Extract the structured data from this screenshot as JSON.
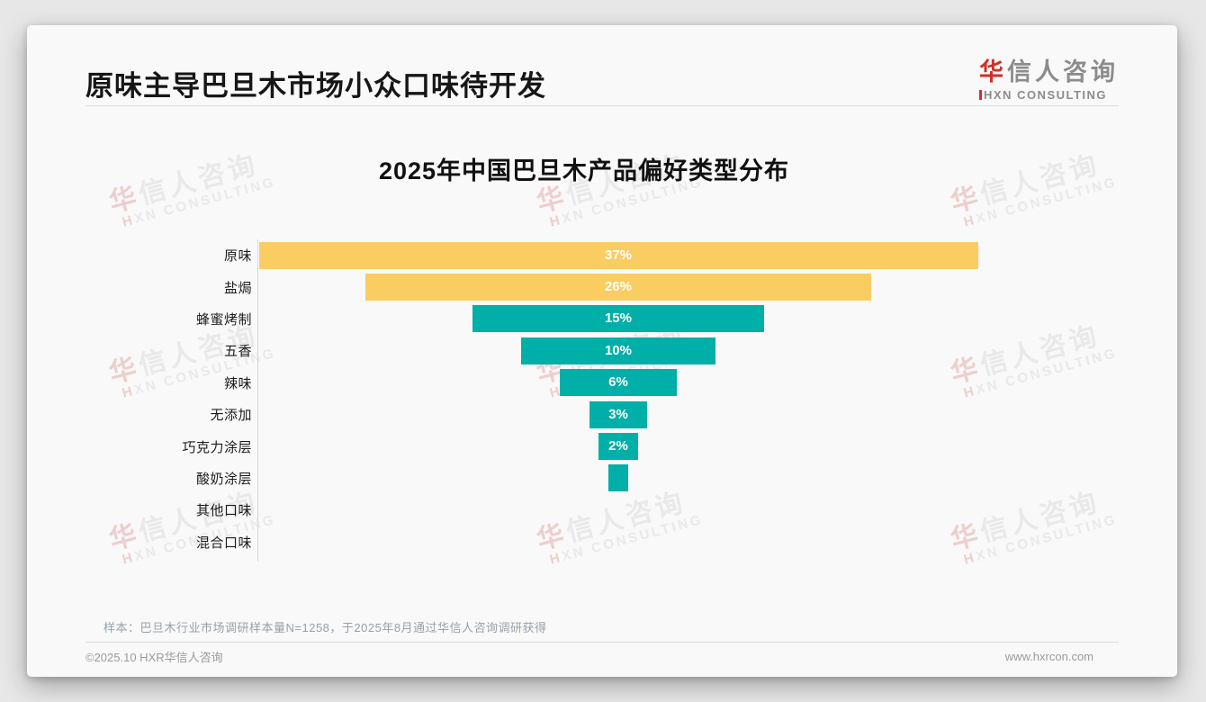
{
  "header": {
    "title": "原味主导巴旦木市场小众口味待开发"
  },
  "logo": {
    "zh_accent": "华",
    "zh_rest": "信人咨询",
    "en": "HXN CONSULTING",
    "accent_color": "#d22f27"
  },
  "watermark": {
    "line1_accent": "华",
    "line1_rest": "信人咨询",
    "line2_accent": "H",
    "line2_rest": "XN CONSULTING"
  },
  "chart_data": {
    "type": "bar",
    "subtype": "centered-funnel-horizontal",
    "title": "2025年中国巴旦木产品偏好类型分布",
    "categories": [
      "原味",
      "盐焗",
      "蜂蜜烤制",
      "五香",
      "辣味",
      "无添加",
      "巧克力涂层",
      "酸奶涂层",
      "其他口味",
      "混合口味"
    ],
    "values": [
      37,
      26,
      15,
      10,
      6,
      3,
      2,
      1,
      0,
      0
    ],
    "value_labels": [
      "37%",
      "26%",
      "15%",
      "10%",
      "6%",
      "3%",
      "2%",
      "",
      "",
      ""
    ],
    "unit": "%",
    "xlim": [
      0,
      37
    ],
    "grid": false,
    "legend": "none",
    "colors": {
      "highlight": "#FACD63",
      "default": "#00AFA8",
      "highlight_count": 2
    },
    "value_label_color": "#ffffff"
  },
  "footer": {
    "sample_note": "样本：巴旦木行业市场调研样本量N=1258，于2025年8月通过华信人咨询调研获得",
    "copyright": "©2025.10 HXR华信人咨询",
    "website": "www.hxrcon.com"
  }
}
